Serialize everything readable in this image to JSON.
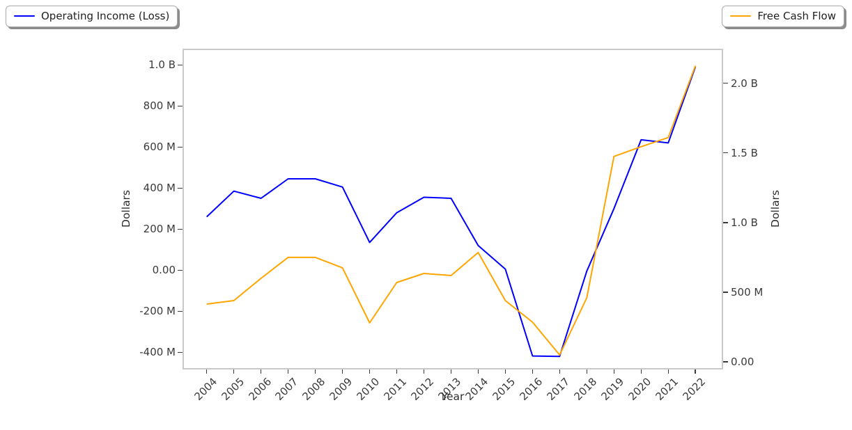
{
  "legends": {
    "left": {
      "label": "Operating Income (Loss)",
      "color": "#0000ff"
    },
    "right": {
      "label": "Free Cash Flow",
      "color": "#ffa500"
    }
  },
  "colors": {
    "operating_income_line": "#0000ff",
    "free_cash_flow_line": "#ffa500",
    "spine": "#c9c9c9",
    "tick_text": "#3a3a3a",
    "background": "#ffffff"
  },
  "chart_data": {
    "type": "line",
    "title": "",
    "xlabel": "Year",
    "ylabel_left": "Dollars",
    "ylabel_right": "Dollars",
    "grid": false,
    "legend_position": [
      "upper left (outside axes)",
      "upper right (outside axes)"
    ],
    "x": [
      2004,
      2005,
      2006,
      2007,
      2008,
      2009,
      2010,
      2011,
      2012,
      2013,
      2014,
      2015,
      2016,
      2017,
      2018,
      2019,
      2020,
      2021,
      2022
    ],
    "series": [
      {
        "name": "Operating Income (Loss)",
        "axis": "left",
        "color": "#0000ff",
        "units": "millions of dollars",
        "values_millions": [
          260,
          385,
          350,
          445,
          445,
          405,
          135,
          280,
          355,
          350,
          120,
          5,
          -418,
          -420,
          -5,
          300,
          635,
          620,
          990
        ]
      },
      {
        "name": "Free Cash Flow",
        "axis": "right",
        "color": "#ffa500",
        "units": "millions of dollars",
        "values_millions": [
          415,
          440,
          600,
          750,
          750,
          675,
          280,
          570,
          635,
          620,
          785,
          440,
          285,
          50,
          460,
          1475,
          1545,
          1610,
          2125
        ]
      }
    ],
    "left_axis_ticks": [
      {
        "label": "1.0 B",
        "value_millions": 1000
      },
      {
        "label": "800 M",
        "value_millions": 800
      },
      {
        "label": "600 M",
        "value_millions": 600
      },
      {
        "label": "400 M",
        "value_millions": 400
      },
      {
        "label": "200 M",
        "value_millions": 200
      },
      {
        "label": "0.00",
        "value_millions": 0
      },
      {
        "label": "-200 M",
        "value_millions": -200
      },
      {
        "label": "-400 M",
        "value_millions": -400
      }
    ],
    "right_axis_ticks": [
      {
        "label": "2.0 B",
        "value_millions": 2000
      },
      {
        "label": "1.5 B",
        "value_millions": 1500
      },
      {
        "label": "1.0 B",
        "value_millions": 1000
      },
      {
        "label": "500 M",
        "value_millions": 500
      },
      {
        "label": "0.00",
        "value_millions": 0
      }
    ],
    "xlim": [
      2003.16,
      2022.97
    ],
    "ylim_left_millions": [
      -477,
      1072
    ],
    "ylim_right_millions": [
      -44.5,
      2238
    ]
  }
}
